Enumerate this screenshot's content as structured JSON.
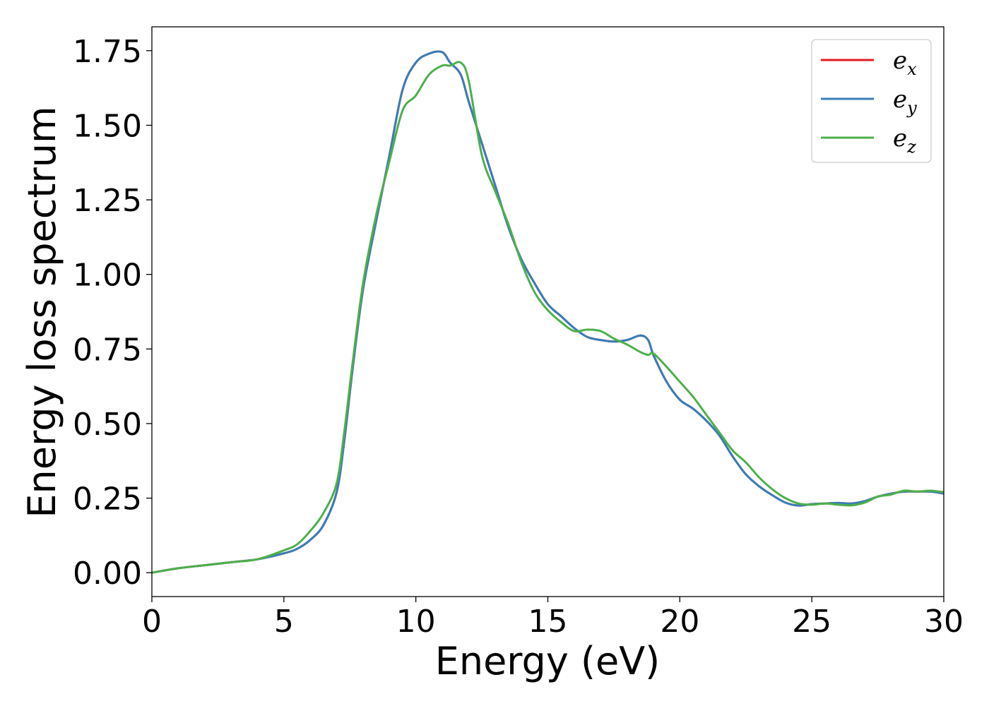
{
  "chart_data": {
    "type": "line",
    "title": "",
    "xlabel": "Energy (eV)",
    "ylabel": "Energy loss spectrum",
    "xlim": [
      0,
      30
    ],
    "ylim": [
      -0.08,
      1.83
    ],
    "xticks": [
      0,
      5,
      10,
      15,
      20,
      25,
      30
    ],
    "xtick_labels": [
      "0",
      "5",
      "10",
      "15",
      "20",
      "25",
      "30"
    ],
    "yticks": [
      0.0,
      0.25,
      0.5,
      0.75,
      1.0,
      1.25,
      1.5,
      1.75
    ],
    "ytick_labels": [
      "0.00",
      "0.25",
      "0.50",
      "0.75",
      "1.00",
      "1.25",
      "1.50",
      "1.75"
    ],
    "grid": false,
    "legend_position": "top-right",
    "series": [
      {
        "name": "e_x",
        "legend_base": "e",
        "legend_sub": "x",
        "color": "#e41a1c",
        "x": [
          0,
          1,
          2,
          3,
          4,
          5,
          5.5,
          6,
          6.5,
          7,
          7.3,
          7.6,
          8,
          8.5,
          9,
          9.5,
          10,
          10.5,
          11,
          11.3,
          11.7,
          12,
          12.5,
          13,
          13.5,
          14,
          14.5,
          15,
          15.5,
          16,
          16.5,
          17,
          17.5,
          18,
          18.5,
          18.8,
          19,
          19.5,
          20,
          20.5,
          21,
          21.5,
          22,
          22.5,
          23,
          23.5,
          24,
          24.5,
          25,
          25.5,
          26,
          26.5,
          27,
          27.5,
          28,
          28.5,
          29,
          29.5,
          30
        ],
        "y": [
          0.0,
          0.015,
          0.025,
          0.035,
          0.045,
          0.065,
          0.08,
          0.11,
          0.16,
          0.27,
          0.45,
          0.68,
          0.95,
          1.18,
          1.4,
          1.62,
          1.71,
          1.74,
          1.745,
          1.71,
          1.67,
          1.58,
          1.44,
          1.3,
          1.16,
          1.05,
          0.97,
          0.9,
          0.86,
          0.82,
          0.79,
          0.78,
          0.775,
          0.78,
          0.795,
          0.78,
          0.73,
          0.64,
          0.58,
          0.55,
          0.51,
          0.46,
          0.39,
          0.33,
          0.29,
          0.26,
          0.235,
          0.225,
          0.23,
          0.232,
          0.234,
          0.232,
          0.24,
          0.255,
          0.265,
          0.272,
          0.272,
          0.272,
          0.265
        ]
      },
      {
        "name": "e_y",
        "legend_base": "e",
        "legend_sub": "y",
        "color": "#377eb8",
        "x": [
          0,
          1,
          2,
          3,
          4,
          5,
          5.5,
          6,
          6.5,
          7,
          7.3,
          7.6,
          8,
          8.5,
          9,
          9.5,
          10,
          10.5,
          11,
          11.3,
          11.7,
          12,
          12.5,
          13,
          13.5,
          14,
          14.5,
          15,
          15.5,
          16,
          16.5,
          17,
          17.5,
          18,
          18.5,
          18.8,
          19,
          19.5,
          20,
          20.5,
          21,
          21.5,
          22,
          22.5,
          23,
          23.5,
          24,
          24.5,
          25,
          25.5,
          26,
          26.5,
          27,
          27.5,
          28,
          28.5,
          29,
          29.5,
          30
        ],
        "y": [
          0.0,
          0.015,
          0.025,
          0.035,
          0.045,
          0.065,
          0.08,
          0.11,
          0.16,
          0.27,
          0.45,
          0.68,
          0.95,
          1.18,
          1.4,
          1.62,
          1.71,
          1.74,
          1.745,
          1.71,
          1.67,
          1.58,
          1.44,
          1.3,
          1.16,
          1.05,
          0.97,
          0.9,
          0.86,
          0.82,
          0.79,
          0.78,
          0.775,
          0.78,
          0.795,
          0.78,
          0.73,
          0.64,
          0.58,
          0.55,
          0.51,
          0.46,
          0.39,
          0.33,
          0.29,
          0.26,
          0.235,
          0.225,
          0.23,
          0.232,
          0.234,
          0.232,
          0.24,
          0.255,
          0.265,
          0.272,
          0.272,
          0.272,
          0.265
        ]
      },
      {
        "name": "e_z",
        "legend_base": "e",
        "legend_sub": "z",
        "color": "#4daf4a",
        "x": [
          0,
          1,
          2,
          3,
          4,
          5,
          5.5,
          6,
          6.5,
          7,
          7.3,
          7.6,
          8,
          8.5,
          9,
          9.5,
          10,
          10.5,
          11,
          11.3,
          11.7,
          12,
          12.5,
          13,
          13.5,
          14,
          14.5,
          15,
          15.5,
          16,
          16.5,
          17,
          17.5,
          18,
          18.5,
          18.8,
          19,
          19.5,
          20,
          20.5,
          21,
          21.5,
          22,
          22.5,
          23,
          23.5,
          24,
          24.5,
          25,
          25.5,
          26,
          26.5,
          27,
          27.5,
          28,
          28.5,
          29,
          29.5,
          30
        ],
        "y": [
          0.0,
          0.015,
          0.025,
          0.035,
          0.045,
          0.075,
          0.095,
          0.14,
          0.2,
          0.3,
          0.48,
          0.7,
          0.97,
          1.2,
          1.38,
          1.55,
          1.6,
          1.67,
          1.7,
          1.7,
          1.71,
          1.65,
          1.4,
          1.28,
          1.17,
          1.04,
          0.94,
          0.88,
          0.84,
          0.81,
          0.815,
          0.81,
          0.785,
          0.765,
          0.74,
          0.73,
          0.735,
          0.69,
          0.64,
          0.59,
          0.53,
          0.47,
          0.41,
          0.37,
          0.32,
          0.28,
          0.25,
          0.232,
          0.228,
          0.232,
          0.228,
          0.226,
          0.235,
          0.255,
          0.262,
          0.275,
          0.272,
          0.275,
          0.27
        ]
      }
    ]
  }
}
